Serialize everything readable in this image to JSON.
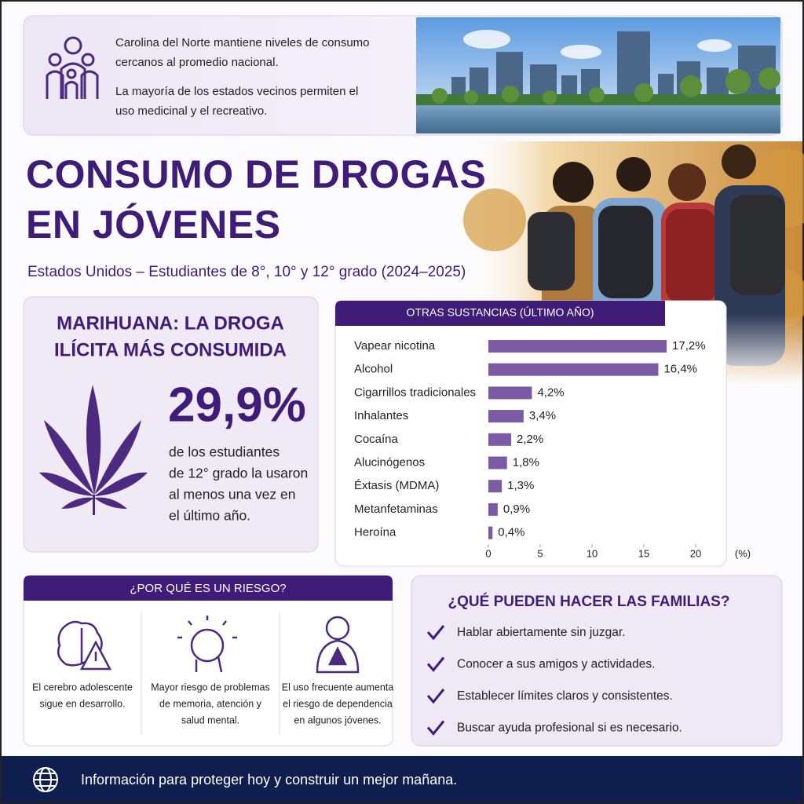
{
  "intro": {
    "paragraphs": [
      [
        "Carolina del Norte mantiene niveles de consumo",
        "cercanos al promedio nacional."
      ],
      [
        "La mayoría de los estados vecinos permiten el",
        "uso medicinal y el recreativo."
      ]
    ]
  },
  "header": {
    "title": [
      "CONSUMO DE DROGAS",
      "EN JÓVENES"
    ],
    "subtitle": "Estados Unidos – Estudiantes de 8°, 10° y 12° grado (2024–2025)"
  },
  "marijuana": {
    "title": [
      "MARIHUANA: LA DROGA",
      "ILÍCITA MÁS CONSUMIDA"
    ],
    "stat": "29,9%",
    "description": [
      "de los estudiantes",
      "de 12° grado la usaron",
      "al menos una vez en",
      "el último año."
    ]
  },
  "chart_data": {
    "type": "bar",
    "orientation": "horizontal",
    "title": "OTRAS SUSTANCIAS (ÚLTIMO AÑO)",
    "categories": [
      "Vapear nicotina",
      "Alcohol",
      "Cigarrillos tradicionales",
      "Inhalantes",
      "Cocaína",
      "Alucinógenos",
      "Éxtasis (MDMA)",
      "Metanfetaminas",
      "Heroína"
    ],
    "values": [
      17.2,
      16.4,
      4.2,
      3.4,
      2.2,
      1.8,
      1.3,
      0.9,
      0.4
    ],
    "value_labels": [
      "17,2%",
      "16,4%",
      "4,2%",
      "3,4%",
      "2,2%",
      "1,8%",
      "1,3%",
      "0,9%",
      "0,4%"
    ],
    "color": "#7b5aa6",
    "xlim": [
      0,
      20
    ],
    "xticks": [
      0,
      5,
      10,
      15,
      20
    ],
    "x_label": "(%)"
  },
  "risks": {
    "title": "¿POR QUÉ ES UN RIESGO?",
    "items": [
      [
        "El cerebro adolescente",
        "sigue en desarrollo."
      ],
      [
        "Mayor riesgo de problemas",
        "de memoria, atención y",
        "salud mental."
      ],
      [
        "El uso frecuente aumenta",
        "el riesgo de dependencia",
        "en algunos jóvenes."
      ]
    ]
  },
  "families": {
    "title": "¿QUÉ PUEDEN HACER LAS FAMILIAS?",
    "items": [
      "Hablar abiertamente sin juzgar.",
      "Conocer a sus amigos y actividades.",
      "Establecer límites claros y consistentes.",
      "Buscar ayuda profesional si es necesario."
    ]
  },
  "footer": {
    "text": "Información para proteger hoy y construir un mejor mañana."
  }
}
